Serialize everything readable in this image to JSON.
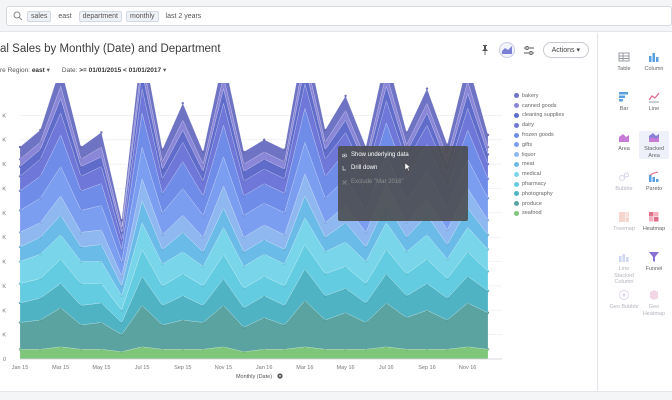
{
  "search": {
    "tokens": [
      "sales",
      "east",
      "department",
      "monthly",
      "last 2 years"
    ]
  },
  "chart_header": {
    "title": "al Sales by Monthly (Date) and Department",
    "filter_region_label": "re Region:",
    "filter_region_value": "east",
    "filter_date_label": "Date:",
    "filter_date_value": ">= 01/01/2015 < 01/01/2017",
    "actions_label": "Actions"
  },
  "context_menu": {
    "items": [
      "Show underlying data",
      "Drill down",
      "Exclude \"Mar 2016\""
    ]
  },
  "viz_types": [
    {
      "label": "Table",
      "icon": "table-icon",
      "state": "normal"
    },
    {
      "label": "Column",
      "icon": "column-chart-icon",
      "state": "normal"
    },
    {
      "label": "Bar",
      "icon": "bar-chart-icon",
      "state": "normal"
    },
    {
      "label": "Line",
      "icon": "line-chart-icon",
      "state": "normal"
    },
    {
      "label": "Area",
      "icon": "area-chart-icon",
      "state": "normal"
    },
    {
      "label": "Stacked Area",
      "icon": "stacked-area-icon",
      "state": "selected"
    },
    {
      "label": "Bubble",
      "icon": "bubble-chart-icon",
      "state": "dim"
    },
    {
      "label": "Pareto",
      "icon": "pareto-chart-icon",
      "state": "normal"
    },
    {
      "label": "Treemap",
      "icon": "treemap-icon",
      "state": "dim"
    },
    {
      "label": "Heatmap",
      "icon": "heatmap-icon",
      "state": "normal"
    },
    {
      "label": "Line Stacked Column",
      "icon": "line-stacked-column-icon",
      "state": "dim"
    },
    {
      "label": "Funnel",
      "icon": "funnel-icon",
      "state": "normal"
    },
    {
      "label": "Geo Bubble",
      "icon": "geo-bubble-icon",
      "state": "dim"
    },
    {
      "label": "Geo Heatmap",
      "icon": "geo-heatmap-icon",
      "state": "dim"
    }
  ],
  "colors": {
    "accent": "#6c72c9",
    "menu_bg": "#4b4b4b"
  },
  "chart_data": {
    "type": "area",
    "stacked": true,
    "title": "al Sales by Monthly (Date) and Department",
    "xlabel": "Monthly (Date)",
    "ylabel": "",
    "x": [
      "Jan 15",
      "Feb 15",
      "Mar 15",
      "Apr 15",
      "May 15",
      "Jun 15",
      "Jul 15",
      "Aug 15",
      "Sep 15",
      "Oct 15",
      "Nov 15",
      "Dec 15",
      "Jan 16",
      "Feb 16",
      "Mar 16",
      "Apr 16",
      "May 16",
      "Jun 16",
      "Jul 16",
      "Aug 16",
      "Sep 16",
      "Oct 16",
      "Nov 16",
      "Dec 16"
    ],
    "x_tick_labels": [
      "Jan 15",
      "Mar 15",
      "May 15",
      "Jul 15",
      "Sep 15",
      "Nov 15",
      "Jan 16",
      "Mar 16",
      "May 16",
      "Jul 16",
      "Sep 16",
      "Nov 16"
    ],
    "y_tick_labels": [
      "0",
      "K",
      "K",
      "K",
      "K",
      "K",
      "K",
      "K",
      "K",
      "K",
      "K"
    ],
    "grid": true,
    "legend_position": "right",
    "series": [
      {
        "name": "seafood",
        "color": "#7dc67a",
        "values": [
          0.4,
          0.4,
          0.5,
          0.4,
          0.4,
          0.3,
          0.5,
          0.4,
          0.4,
          0.4,
          0.5,
          0.3,
          0.4,
          0.4,
          0.5,
          0.4,
          0.4,
          0.4,
          0.5,
          0.4,
          0.4,
          0.4,
          0.5,
          0.4
        ]
      },
      {
        "name": "produce",
        "color": "#5aa3a0",
        "values": [
          1.1,
          1.2,
          1.6,
          1.0,
          1.1,
          0.7,
          1.7,
          1.0,
          1.2,
          1.1,
          1.7,
          1.0,
          1.3,
          1.0,
          1.9,
          1.2,
          1.5,
          1.1,
          1.8,
          1.3,
          1.6,
          1.2,
          1.8,
          1.5
        ]
      },
      {
        "name": "photography",
        "color": "#4fb3c4",
        "values": [
          0.8,
          0.9,
          1.0,
          0.8,
          0.8,
          0.5,
          1.2,
          0.8,
          1.0,
          0.7,
          1.1,
          0.8,
          0.9,
          0.8,
          1.3,
          1.0,
          1.0,
          0.8,
          1.2,
          0.9,
          1.1,
          0.9,
          1.1,
          0.9
        ]
      },
      {
        "name": "pharmacy",
        "color": "#64cce0",
        "values": [
          0.8,
          0.8,
          1.0,
          0.9,
          0.8,
          0.5,
          1.1,
          0.8,
          0.9,
          0.8,
          1.0,
          0.8,
          0.8,
          0.8,
          1.0,
          0.9,
          0.9,
          0.8,
          1.0,
          0.9,
          1.0,
          0.8,
          1.0,
          0.8
        ]
      },
      {
        "name": "medical",
        "color": "#79d6ea",
        "values": [
          0.9,
          1.0,
          1.0,
          0.9,
          0.9,
          0.6,
          1.1,
          0.9,
          0.9,
          0.8,
          1.1,
          0.9,
          0.9,
          0.9,
          1.1,
          0.9,
          1.0,
          0.9,
          1.1,
          0.9,
          1.0,
          0.8,
          1.0,
          0.9
        ]
      },
      {
        "name": "meat",
        "color": "#6bbbe9",
        "values": [
          0.6,
          0.7,
          0.8,
          0.6,
          0.7,
          0.4,
          0.9,
          0.6,
          0.8,
          0.6,
          0.8,
          0.6,
          0.6,
          0.6,
          0.9,
          0.6,
          0.8,
          0.6,
          0.8,
          0.6,
          0.8,
          0.6,
          0.8,
          0.6
        ]
      },
      {
        "name": "liquor",
        "color": "#8fb8f0",
        "values": [
          0.6,
          0.6,
          0.8,
          0.6,
          0.6,
          0.4,
          0.9,
          0.6,
          0.7,
          0.6,
          0.9,
          0.6,
          0.6,
          0.6,
          0.9,
          0.6,
          0.7,
          0.6,
          0.8,
          0.6,
          0.7,
          0.6,
          0.8,
          0.6
        ]
      },
      {
        "name": "gifts",
        "color": "#7c9ef0",
        "values": [
          0.9,
          1.0,
          1.2,
          0.9,
          1.0,
          0.6,
          1.3,
          0.9,
          1.1,
          0.9,
          1.2,
          0.9,
          0.9,
          0.9,
          1.3,
          1.0,
          1.1,
          0.9,
          1.2,
          0.9,
          1.1,
          0.9,
          1.2,
          0.9
        ]
      },
      {
        "name": "frozen goods",
        "color": "#6f8de8",
        "values": [
          0.8,
          0.9,
          1.3,
          0.8,
          0.9,
          0.5,
          1.4,
          0.8,
          1.1,
          0.8,
          1.3,
          0.8,
          0.8,
          0.8,
          1.4,
          0.9,
          1.1,
          0.8,
          1.3,
          0.9,
          1.1,
          0.8,
          1.2,
          0.8
        ]
      },
      {
        "name": "dairy",
        "color": "#6f78d8",
        "values": [
          0.6,
          0.7,
          0.9,
          0.6,
          0.7,
          0.4,
          1.0,
          0.6,
          0.8,
          0.6,
          0.9,
          0.6,
          0.6,
          0.6,
          1.0,
          0.7,
          0.8,
          0.6,
          0.9,
          0.7,
          0.8,
          0.6,
          0.9,
          0.6
        ]
      },
      {
        "name": "cleaning supplies",
        "color": "#5f6cc9",
        "values": [
          0.4,
          0.4,
          0.6,
          0.4,
          0.4,
          0.3,
          0.7,
          0.4,
          0.5,
          0.4,
          0.6,
          0.4,
          0.4,
          0.4,
          0.7,
          0.4,
          0.5,
          0.4,
          0.6,
          0.4,
          0.5,
          0.4,
          0.6,
          0.4
        ]
      },
      {
        "name": "canned goods",
        "color": "#8a86d8",
        "values": [
          0.3,
          0.3,
          0.5,
          0.3,
          0.4,
          0.2,
          0.5,
          0.3,
          0.4,
          0.3,
          0.5,
          0.3,
          0.3,
          0.3,
          0.5,
          0.3,
          0.4,
          0.3,
          0.5,
          0.3,
          0.4,
          0.3,
          0.5,
          0.3
        ]
      },
      {
        "name": "bakery",
        "color": "#6f73c4",
        "values": [
          0.5,
          0.5,
          0.8,
          0.5,
          0.6,
          0.3,
          0.8,
          0.5,
          0.7,
          0.5,
          0.8,
          0.5,
          0.5,
          0.5,
          0.8,
          0.5,
          0.6,
          0.5,
          0.8,
          0.5,
          0.6,
          0.5,
          0.8,
          0.5
        ]
      }
    ]
  }
}
